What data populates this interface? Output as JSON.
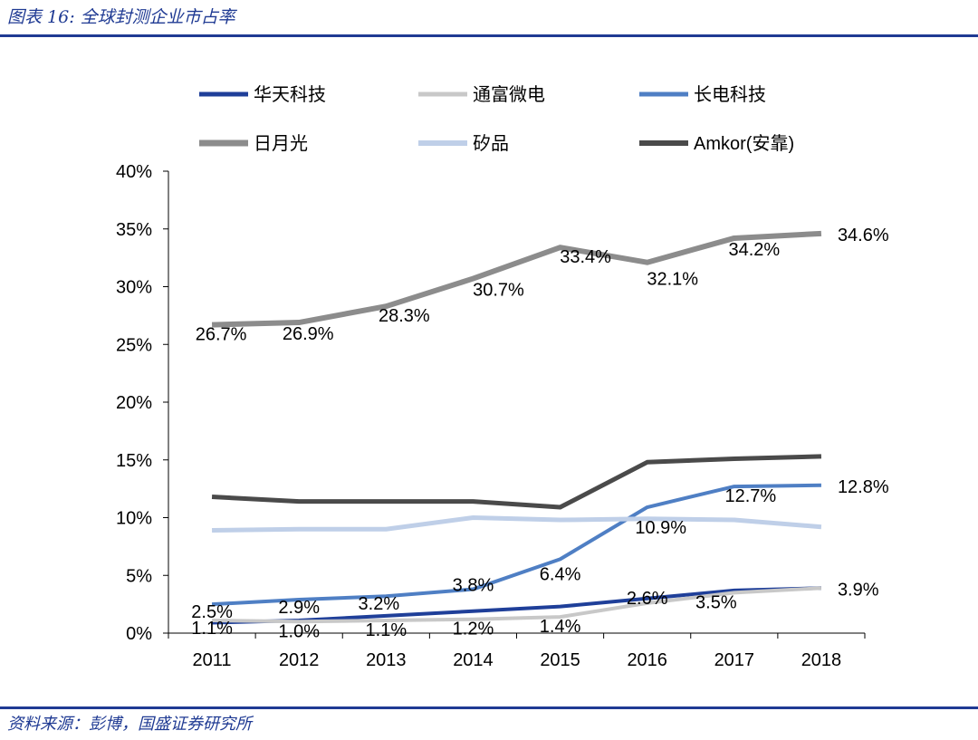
{
  "figure": {
    "title": "图表 16:  全球封测企业市占率",
    "source": "资料来源：彭博，国盛证券研究所"
  },
  "chart_data": {
    "type": "line",
    "title": "",
    "xlabel": "",
    "ylabel": "",
    "x": [
      "2011",
      "2012",
      "2013",
      "2014",
      "2015",
      "2016",
      "2017",
      "2018"
    ],
    "ylim": [
      0,
      40
    ],
    "yticks": [
      "0%",
      "5%",
      "10%",
      "15%",
      "20%",
      "25%",
      "30%",
      "35%",
      "40%"
    ],
    "legend_position": "top",
    "series": [
      {
        "name": "华天科技",
        "color": "#1f3f99",
        "width": 4,
        "values": [
          0.9,
          1.1,
          1.5,
          1.9,
          2.3,
          3.0,
          3.7,
          3.9
        ],
        "labels": [
          null,
          null,
          null,
          null,
          null,
          null,
          null,
          null
        ]
      },
      {
        "name": "通富微电",
        "color": "#c8c8c8",
        "width": 4,
        "values": [
          1.1,
          1.0,
          1.1,
          1.2,
          1.4,
          2.6,
          3.5,
          3.9
        ],
        "labels": [
          "1.1%",
          "1.0%",
          "1.1%",
          "1.2%",
          "1.4%",
          "2.6%",
          "3.5%",
          null
        ]
      },
      {
        "name": "长电科技",
        "color": "#4f7fc4",
        "width": 4,
        "values": [
          2.5,
          2.9,
          3.2,
          3.8,
          6.4,
          10.9,
          12.7,
          12.8
        ],
        "labels": [
          "2.5%",
          "2.9%",
          "3.2%",
          "3.8%",
          "6.4%",
          "10.9%",
          "12.7%",
          "12.8%"
        ]
      },
      {
        "name": "日月光",
        "color": "#8c8c8c",
        "width": 6,
        "values": [
          26.7,
          26.9,
          28.3,
          30.7,
          33.4,
          32.1,
          34.2,
          34.6
        ],
        "labels": [
          "26.7%",
          "26.9%",
          "28.3%",
          "30.7%",
          "33.4%",
          "32.1%",
          "34.2%",
          "34.6%"
        ]
      },
      {
        "name": "矽品",
        "color": "#bfcfe8",
        "width": 5,
        "values": [
          8.9,
          9.0,
          9.0,
          10.0,
          9.8,
          9.9,
          9.8,
          9.2
        ],
        "labels": [
          null,
          null,
          null,
          null,
          null,
          null,
          null,
          null
        ]
      },
      {
        "name": "Amkor(安靠)",
        "color": "#4a4a4a",
        "width": 5,
        "values": [
          11.8,
          11.4,
          11.4,
          11.4,
          10.9,
          14.8,
          15.1,
          15.3
        ],
        "labels": [
          null,
          null,
          null,
          null,
          null,
          null,
          null,
          null
        ]
      }
    ],
    "extra_label": "3.9%"
  }
}
